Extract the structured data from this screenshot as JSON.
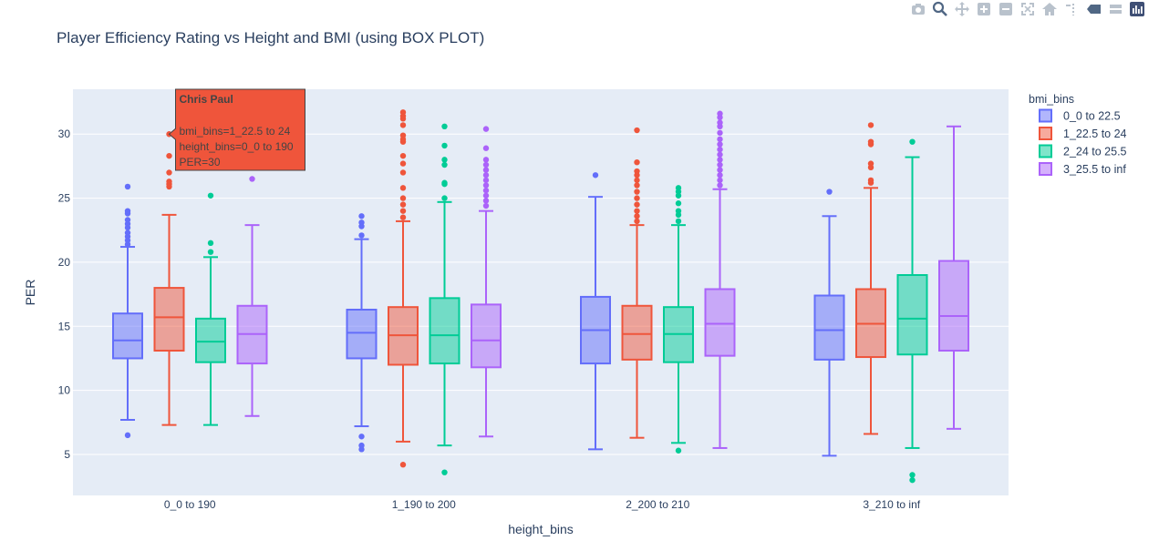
{
  "modebar": {
    "buttons": [
      "camera-icon",
      "zoom-icon",
      "pan-icon",
      "zoom-in-icon",
      "zoom-out-icon",
      "autoscale-icon",
      "home-icon",
      "spike-lines-icon",
      "hover-closest-icon",
      "hover-compare-icon",
      "plotly-logo-icon"
    ]
  },
  "chart_data": {
    "type": "box",
    "title": "Player Efficiency Rating vs Height and BMI (using BOX PLOT)",
    "xlabel": "height_bins",
    "ylabel": "PER",
    "ylim": [
      1.8,
      33.5
    ],
    "yticks": [
      5,
      10,
      15,
      20,
      25,
      30
    ],
    "grid": true,
    "legend_title": "bmi_bins",
    "legend_position": "top-right",
    "categories": [
      "0_0 to 190",
      "1_190 to 200",
      "2_200 to 210",
      "3_210 to inf"
    ],
    "series": [
      {
        "name": "0_0 to 22.5",
        "color": "#636efa",
        "boxes": [
          {
            "lowerfence": 7.7,
            "q1": 12.5,
            "median": 13.9,
            "q3": 16.0,
            "upperfence": 21.2,
            "outliers": [
              6.5,
              21.4,
              21.7,
              22.0,
              22.3,
              22.7,
              23.0,
              23.3,
              23.8,
              24.0,
              25.9
            ]
          },
          {
            "lowerfence": 7.2,
            "q1": 12.5,
            "median": 14.5,
            "q3": 16.3,
            "upperfence": 21.8,
            "outliers": [
              5.4,
              5.7,
              6.4,
              22.1,
              22.8,
              23.1,
              23.6
            ]
          },
          {
            "lowerfence": 5.4,
            "q1": 12.1,
            "median": 14.7,
            "q3": 17.3,
            "upperfence": 25.1,
            "outliers": [
              26.8
            ]
          },
          {
            "lowerfence": 4.9,
            "q1": 12.4,
            "median": 14.7,
            "q3": 17.4,
            "upperfence": 23.6,
            "outliers": [
              25.5
            ]
          }
        ]
      },
      {
        "name": "1_22.5 to 24",
        "color": "#ef553b",
        "boxes": [
          {
            "lowerfence": 7.3,
            "q1": 13.1,
            "median": 15.7,
            "q3": 18.0,
            "upperfence": 23.7,
            "outliers": [
              25.9,
              26.1,
              26.3,
              27.0,
              28.3,
              30.0
            ]
          },
          {
            "lowerfence": 6.0,
            "q1": 12.0,
            "median": 14.3,
            "q3": 16.5,
            "upperfence": 23.2,
            "outliers": [
              4.2,
              23.5,
              24.0,
              24.5,
              25.0,
              25.8,
              27.0,
              27.7,
              28.3,
              29.4,
              29.6,
              29.9,
              30.7,
              31.2,
              31.4,
              31.7
            ]
          },
          {
            "lowerfence": 6.3,
            "q1": 12.4,
            "median": 14.4,
            "q3": 16.6,
            "upperfence": 22.9,
            "outliers": [
              23.2,
              23.6,
              24.0,
              24.5,
              25.0,
              25.5,
              26.0,
              26.4,
              26.8,
              27.1,
              27.8,
              30.3
            ]
          },
          {
            "lowerfence": 6.6,
            "q1": 12.6,
            "median": 15.2,
            "q3": 17.9,
            "upperfence": 25.8,
            "outliers": [
              26.2,
              26.4,
              27.4,
              27.7,
              29.2,
              29.4,
              30.7
            ]
          }
        ]
      },
      {
        "name": "2_24 to 25.5",
        "color": "#00cc96",
        "boxes": [
          {
            "lowerfence": 7.3,
            "q1": 12.2,
            "median": 13.8,
            "q3": 15.6,
            "upperfence": 20.4,
            "outliers": [
              20.8,
              21.5,
              25.2
            ]
          },
          {
            "lowerfence": 5.7,
            "q1": 12.1,
            "median": 14.3,
            "q3": 17.2,
            "upperfence": 24.7,
            "outliers": [
              3.6,
              25.0,
              26.1,
              26.2,
              27.6,
              28.0,
              29.1,
              30.6
            ]
          },
          {
            "lowerfence": 5.9,
            "q1": 12.2,
            "median": 14.4,
            "q3": 16.5,
            "upperfence": 22.9,
            "outliers": [
              5.3,
              23.2,
              23.7,
              24.0,
              24.6,
              25.2,
              25.5,
              25.8
            ]
          },
          {
            "lowerfence": 5.5,
            "q1": 12.8,
            "median": 15.6,
            "q3": 19.0,
            "upperfence": 28.2,
            "outliers": [
              3.0,
              3.4,
              29.4
            ]
          }
        ]
      },
      {
        "name": "3_25.5 to inf",
        "color": "#ab63fa",
        "boxes": [
          {
            "lowerfence": 8.0,
            "q1": 12.1,
            "median": 14.4,
            "q3": 16.6,
            "upperfence": 22.9,
            "outliers": [
              26.5
            ]
          },
          {
            "lowerfence": 6.4,
            "q1": 11.8,
            "median": 13.9,
            "q3": 16.7,
            "upperfence": 24.0,
            "outliers": [
              24.4,
              24.8,
              25.2,
              25.6,
              26.0,
              26.4,
              26.8,
              27.2,
              27.6,
              28.0,
              28.9,
              30.4
            ]
          },
          {
            "lowerfence": 5.5,
            "q1": 12.7,
            "median": 15.2,
            "q3": 17.9,
            "upperfence": 25.7,
            "outliers": [
              26.0,
              26.4,
              26.8,
              27.2,
              27.6,
              28.0,
              28.4,
              28.8,
              29.2,
              29.6,
              30.1,
              30.6,
              30.9,
              31.3,
              31.6
            ]
          },
          {
            "lowerfence": 7.0,
            "q1": 13.1,
            "median": 15.8,
            "q3": 20.1,
            "upperfence": 30.6,
            "outliers": []
          }
        ]
      }
    ],
    "hover": {
      "series_index": 1,
      "category_index": 0,
      "y": 30.0,
      "title": "Chris Paul",
      "lines": [
        "bmi_bins=1_22.5 to 24",
        "height_bins=0_0 to 190",
        "PER=30"
      ]
    }
  }
}
